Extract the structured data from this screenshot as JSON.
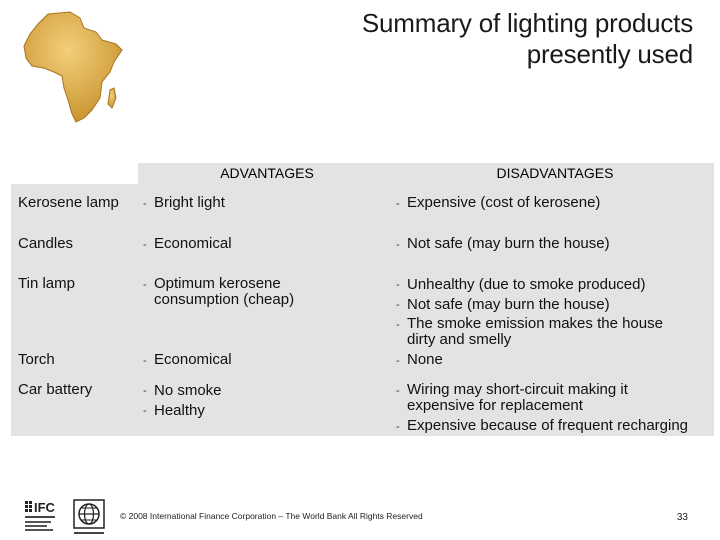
{
  "title": {
    "line1": "Summary of lighting products",
    "line2": "presently used"
  },
  "table": {
    "headers": {
      "advantages": "ADVANTAGES",
      "disadvantages": "DISADVANTAGES"
    },
    "rows": [
      {
        "product": "Kerosene lamp",
        "advantages": [
          "Bright light"
        ],
        "disadvantages": [
          "Expensive (cost of kerosene)"
        ]
      },
      {
        "product": "Candles",
        "advantages": [
          "Economical"
        ],
        "disadvantages": [
          "Not safe (may burn the house)"
        ]
      },
      {
        "product": "Tin lamp",
        "advantages": [
          "Optimum kerosene consumption (cheap)"
        ],
        "disadvantages": [
          "Unhealthy (due to smoke produced)",
          "Not safe (may burn the house)",
          "The smoke emission makes the house dirty and smelly"
        ]
      },
      {
        "product": "Torch",
        "advantages": [
          "Economical"
        ],
        "disadvantages": [
          "None"
        ]
      },
      {
        "product": "Car battery",
        "advantages": [
          "No smoke",
          "Healthy"
        ],
        "disadvantages": [
          "Wiring may short-circuit making it expensive for replacement",
          "Expensive because of frequent recharging"
        ]
      }
    ]
  },
  "advantage_lines": {
    "tin_lamp": [
      "Optimum kerosene",
      "consumption (cheap)"
    ]
  },
  "disadvantage_lines": {
    "tin_lamp_3": [
      "The smoke emission makes the house",
      "dirty and smelly"
    ],
    "car_battery_1": [
      "Wiring may short-circuit making it",
      "expensive for replacement"
    ]
  },
  "footer": {
    "copyright": "© 2008 International Finance Corporation – The World Bank All Rights Reserved",
    "page_number": "33"
  },
  "logos": {
    "ifc_text": "IFC"
  },
  "colors": {
    "table_bg": "#e3e3e3",
    "africa": "#d9a441"
  }
}
